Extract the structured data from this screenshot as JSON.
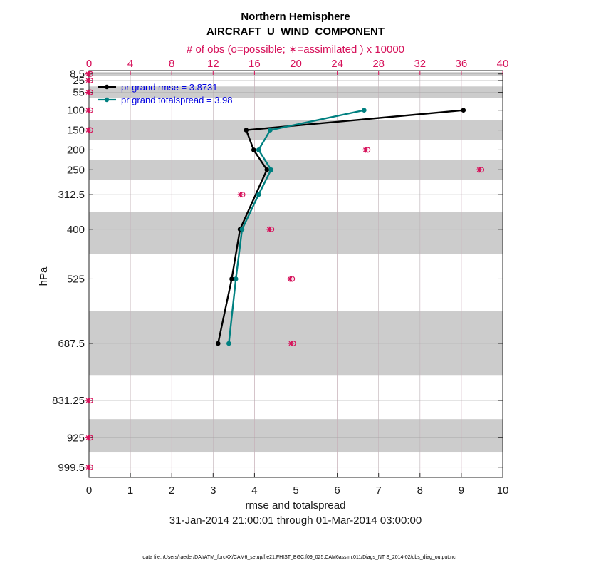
{
  "chart_data": {
    "type": "line",
    "title": "Northern Hemisphere",
    "subtitle": "AIRCRAFT_U_WIND_COMPONENT",
    "xlabel": "rmse and totalspread",
    "ylabel": "hPa",
    "top_xlabel": "# of obs (o=possible; ∗=assimilated ) x 10000",
    "date_range": "31-Jan-2014 21:00:01 through 01-Mar-2014 03:00:00",
    "footer": "data file: /Users/raeder/DAI/ATM_forcXX/CAM6_setup/f.e21.FHIST_BGC.f09_025.CAM6assim.011/Diags_NTrS_2014-02/obs_diag_output.nc",
    "xlim": [
      0,
      10
    ],
    "x_ticks": [
      "0",
      "1",
      "2",
      "3",
      "4",
      "5",
      "6",
      "7",
      "8",
      "9",
      "10"
    ],
    "top_xlim": [
      0,
      40
    ],
    "top_x_ticks": [
      "0",
      "4",
      "8",
      "12",
      "16",
      "20",
      "24",
      "28",
      "32",
      "36",
      "40"
    ],
    "y_levels": [
      8.5,
      25,
      55,
      100,
      150,
      200,
      250,
      312.5,
      400,
      525,
      687.5,
      831.25,
      925,
      999.5
    ],
    "y_tick_labels": [
      "8.5",
      "25",
      "55",
      "100",
      "150",
      "200",
      "250",
      "312.5",
      "400",
      "525",
      "687.5",
      "831.25",
      "925",
      "999.5"
    ],
    "ylim": [
      0,
      1025
    ],
    "y_reversed": true,
    "shaded_bands": [
      [
        4,
        13
      ],
      [
        40,
        70
      ],
      [
        125,
        175
      ],
      [
        225,
        275
      ],
      [
        356.25,
        462.5
      ],
      [
        606.25,
        768.75
      ],
      [
        878.125,
        962.25
      ]
    ],
    "legend_placement": "top-left",
    "series": [
      {
        "name": "pr grand rmse = 3.8731",
        "color": "#000000",
        "points": [
          [
            9.05,
            100
          ],
          [
            3.8,
            150
          ],
          [
            3.98,
            200
          ],
          [
            4.3,
            250
          ],
          [
            3.65,
            400
          ],
          [
            3.45,
            525
          ],
          [
            3.12,
            687.5
          ]
        ]
      },
      {
        "name": "pr grand totalspread = 3.98",
        "color": "#008080",
        "points": [
          [
            6.65,
            100
          ],
          [
            4.38,
            150
          ],
          [
            4.1,
            200
          ],
          [
            4.4,
            250
          ],
          [
            4.1,
            312.5
          ],
          [
            3.7,
            400
          ],
          [
            3.55,
            525
          ],
          [
            3.38,
            687.5
          ]
        ]
      }
    ],
    "obs_counts": {
      "color": "#d6115a",
      "points": [
        [
          0,
          8.5
        ],
        [
          0,
          25
        ],
        [
          0,
          55
        ],
        [
          0,
          100
        ],
        [
          0,
          150
        ],
        [
          26.8,
          200
        ],
        [
          37.8,
          250
        ],
        [
          14.7,
          312.5
        ],
        [
          17.5,
          400
        ],
        [
          19.5,
          525
        ],
        [
          19.6,
          687.5
        ],
        [
          0,
          831.25
        ],
        [
          0,
          925
        ],
        [
          0,
          999.5
        ]
      ]
    }
  }
}
